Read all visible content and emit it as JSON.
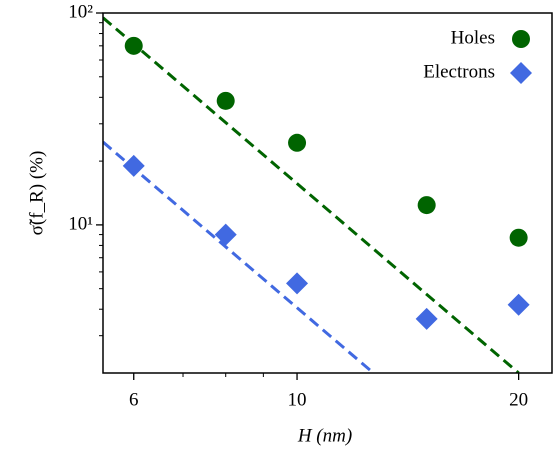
{
  "chart_data": {
    "type": "scatter",
    "xlabel": "H (nm)",
    "ylabel": "σ̃(f_R) (%)",
    "xscale": "log",
    "yscale": "log",
    "xlim": [
      5.45,
      22.2
    ],
    "ylim": [
      2,
      100
    ],
    "xticks": [
      6,
      10,
      20
    ],
    "xminor": [
      7,
      8,
      9
    ],
    "yticks": [
      {
        "value": 10,
        "label": "10¹"
      },
      {
        "value": 100,
        "label": "10²"
      }
    ],
    "yminor": [
      3,
      4,
      5,
      6,
      7,
      8,
      9,
      20,
      30,
      40,
      50,
      60,
      70,
      80,
      90
    ],
    "legend": "upper right",
    "series": [
      {
        "name": "Holes",
        "color": "#006400",
        "marker": "circle",
        "x": [
          6,
          8,
          10,
          15,
          20
        ],
        "values": [
          70,
          38.5,
          24.4,
          12.4,
          8.7
        ]
      },
      {
        "name": "Electrons",
        "color": "#4169e1",
        "marker": "diamond",
        "x": [
          6,
          8,
          10,
          15,
          20
        ],
        "values": [
          19.0,
          9.0,
          5.3,
          3.6,
          4.2
        ]
      }
    ],
    "fits": [
      {
        "color": "#006400",
        "x": [
          5.45,
          20
        ],
        "values": [
          95,
          2
        ]
      },
      {
        "color": "#4169e1",
        "x": [
          5.45,
          12.7
        ],
        "values": [
          24.6,
          2
        ]
      }
    ]
  }
}
